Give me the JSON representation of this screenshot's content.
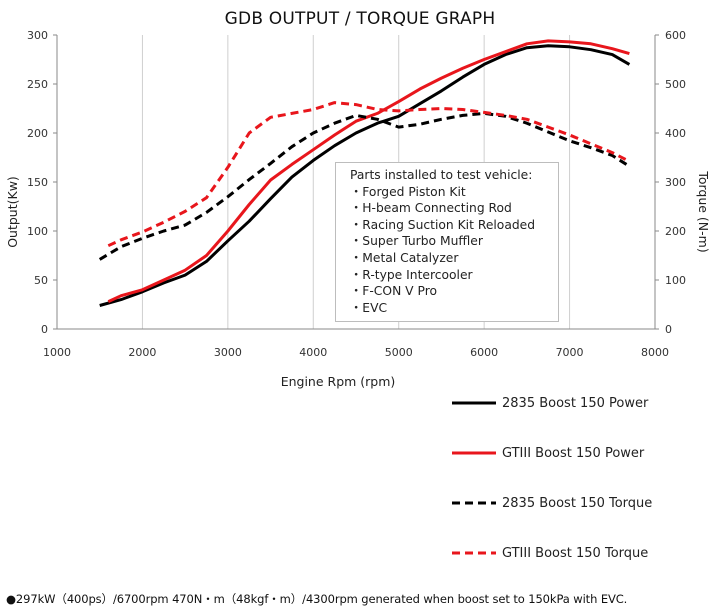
{
  "chart_data": {
    "type": "line",
    "title": "GDB OUTPUT / TORQUE GRAPH",
    "xlabel": "Engine Rpm (rpm)",
    "ylabel_left": "Output(Kw)",
    "ylabel_right": "Torque (N-m)",
    "xlim": [
      1000,
      8000
    ],
    "ylim_left": [
      0,
      300
    ],
    "ylim_right": [
      0,
      600
    ],
    "x_ticks": [
      "1000",
      "2000",
      "3000",
      "4000",
      "5000",
      "6000",
      "7000",
      "8000"
    ],
    "y_ticks_left": [
      "0",
      "50",
      "100",
      "150",
      "200",
      "250",
      "300"
    ],
    "y_ticks_right": [
      "0",
      "100",
      "200",
      "300",
      "400",
      "500",
      "600"
    ],
    "grid": "vertical",
    "series": [
      {
        "name": "2835 Boost 150 Power",
        "axis": "left",
        "color": "#000000",
        "dashed": false,
        "x": [
          1500,
          1750,
          2000,
          2250,
          2500,
          2750,
          3000,
          3250,
          3500,
          3750,
          4000,
          4250,
          4500,
          4750,
          5000,
          5250,
          5500,
          5750,
          6000,
          6250,
          6500,
          6750,
          7000,
          7250,
          7500,
          7700
        ],
        "values": [
          24,
          30,
          38,
          47,
          55,
          69,
          90,
          110,
          133,
          155,
          172,
          187,
          200,
          210,
          217,
          230,
          243,
          257,
          270,
          280,
          287,
          289,
          288,
          285,
          280,
          270
        ]
      },
      {
        "name": "GTIII Boost 150 Power",
        "axis": "left",
        "color": "#e8161c",
        "dashed": false,
        "x": [
          1600,
          1750,
          2000,
          2250,
          2500,
          2750,
          3000,
          3250,
          3500,
          3750,
          4000,
          4250,
          4500,
          4750,
          5000,
          5250,
          5500,
          5750,
          6000,
          6250,
          6500,
          6750,
          7000,
          7250,
          7500,
          7700
        ],
        "values": [
          28,
          34,
          40,
          50,
          60,
          75,
          100,
          127,
          152,
          168,
          183,
          198,
          212,
          220,
          232,
          245,
          256,
          266,
          275,
          283,
          291,
          294,
          293,
          291,
          286,
          281
        ]
      },
      {
        "name": "2835 Boost 150 Torque",
        "axis": "right",
        "color": "#000000",
        "dashed": true,
        "x": [
          1500,
          1750,
          2000,
          2250,
          2500,
          2750,
          3000,
          3250,
          3500,
          3750,
          4000,
          4250,
          4500,
          4750,
          5000,
          5250,
          5500,
          5750,
          6000,
          6250,
          6500,
          6750,
          7000,
          7250,
          7500,
          7700
        ],
        "values": [
          142,
          168,
          185,
          200,
          212,
          238,
          270,
          305,
          338,
          372,
          400,
          420,
          436,
          428,
          412,
          418,
          428,
          436,
          440,
          434,
          420,
          402,
          384,
          370,
          354,
          332
        ]
      },
      {
        "name": "GTIII Boost 150 Torque",
        "axis": "right",
        "color": "#e8161c",
        "dashed": true,
        "x": [
          1600,
          1750,
          2000,
          2250,
          2500,
          2750,
          3000,
          3250,
          3500,
          3750,
          4000,
          4250,
          4500,
          4750,
          5000,
          5250,
          5500,
          5750,
          6000,
          6250,
          6500,
          6750,
          7000,
          7250,
          7500,
          7700
        ],
        "values": [
          170,
          182,
          198,
          218,
          240,
          268,
          330,
          400,
          432,
          440,
          448,
          462,
          458,
          448,
          445,
          448,
          450,
          448,
          442,
          436,
          428,
          412,
          396,
          378,
          360,
          342
        ]
      }
    ],
    "annotation": {
      "heading": "Parts installed to test vehicle:",
      "items": [
        "・Forged Piston Kit",
        "・H-beam Connecting Rod",
        "・Racing Suction Kit Reloaded",
        "・Super Turbo Muffler",
        "・Metal Catalyzer",
        "・R-type Intercooler",
        "・F-CON V Pro",
        "・EVC"
      ]
    },
    "legend_position": "bottom-right"
  },
  "footnote": "●297kW（400ps）/6700rpm 470N・m（48kgf・m）/4300rpm generated when boost set to 150kPa with EVC."
}
